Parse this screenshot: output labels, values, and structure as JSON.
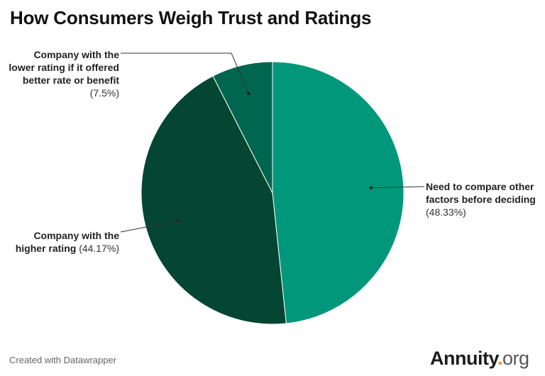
{
  "chart_data": {
    "type": "pie",
    "title": "How Consumers Weigh Trust and Ratings",
    "slices": [
      {
        "label": "Need to compare other factors before deciding",
        "pct_text": "(48.33%)",
        "value": 48.33,
        "color": "#00977a"
      },
      {
        "label": "Company with the higher rating",
        "pct_text": "(44.17%)",
        "value": 44.17,
        "color": "#044632"
      },
      {
        "label": "Company with the lower rating if it offered better rate or benefit",
        "pct_text": "(7.5%)",
        "value": 7.5,
        "color": "#00664f"
      }
    ]
  },
  "footer": {
    "credit": "Created with Datawrapper",
    "logo_text": "Annuity",
    "logo_dot": ".",
    "logo_suffix": "org"
  }
}
